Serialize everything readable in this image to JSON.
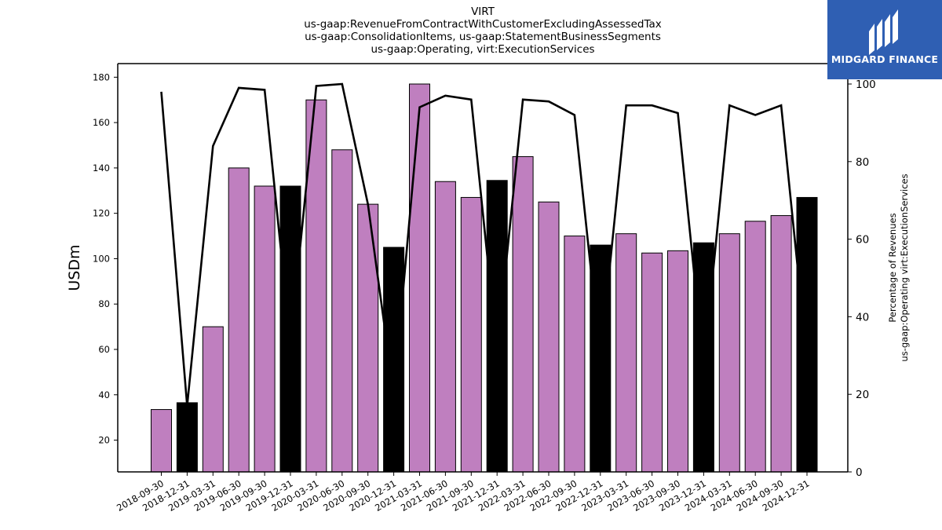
{
  "chart_data": {
    "type": "bar",
    "title_lines": [
      "VIRT",
      "us-gaap:RevenueFromContractWithCustomerExcludingAssessedTax",
      "us-gaap:ConsolidationItems, us-gaap:StatementBusinessSegments",
      "us-gaap:Operating, virt:ExecutionServices"
    ],
    "ylabel": "USDm",
    "y2label_lines": [
      "Percentage of Revenues",
      "us-gaap:Operating virt:ExecutionServices"
    ],
    "ylim": [
      6,
      186
    ],
    "y2lim": [
      0,
      100
    ],
    "yticks": [
      20,
      40,
      60,
      80,
      100,
      120,
      140,
      160,
      180
    ],
    "y2ticks": [
      0,
      20,
      40,
      60,
      80,
      100
    ],
    "categories": [
      "2018-09-30",
      "2018-12-31",
      "2019-03-31",
      "2019-06-30",
      "2019-09-30",
      "2019-12-31",
      "2020-03-31",
      "2020-06-30",
      "2020-09-30",
      "2020-12-31",
      "2021-03-31",
      "2021-06-30",
      "2021-09-30",
      "2021-12-31",
      "2022-03-31",
      "2022-06-30",
      "2022-09-30",
      "2022-12-31",
      "2023-03-31",
      "2023-06-30",
      "2023-09-30",
      "2023-12-31",
      "2024-03-31",
      "2024-06-30",
      "2024-09-30",
      "2024-12-31"
    ],
    "series": [
      {
        "kind": "bar",
        "values": [
          33.5,
          36.5,
          70,
          140,
          132,
          132,
          170,
          148,
          124,
          105,
          177,
          134,
          127,
          134.5,
          145,
          125,
          110,
          106,
          111,
          102.5,
          103.5,
          107,
          111,
          116.5,
          119,
          127
        ]
      },
      {
        "kind": "line",
        "axis": "right",
        "values": [
          98,
          17,
          84,
          99,
          98.5,
          33,
          99.5,
          100,
          69,
          20,
          94,
          97,
          96,
          31,
          96,
          95.5,
          92,
          29,
          94.5,
          94.5,
          92.5,
          27,
          94.5,
          92,
          94.5,
          29
        ]
      }
    ],
    "colors": {
      "bar": "#bf7fbf",
      "bar_year_end": "#000000",
      "line": "#000000"
    },
    "grid": false
  },
  "logo": {
    "text": "MIDGARD FINANCE",
    "bg": "#2f5fb3"
  }
}
